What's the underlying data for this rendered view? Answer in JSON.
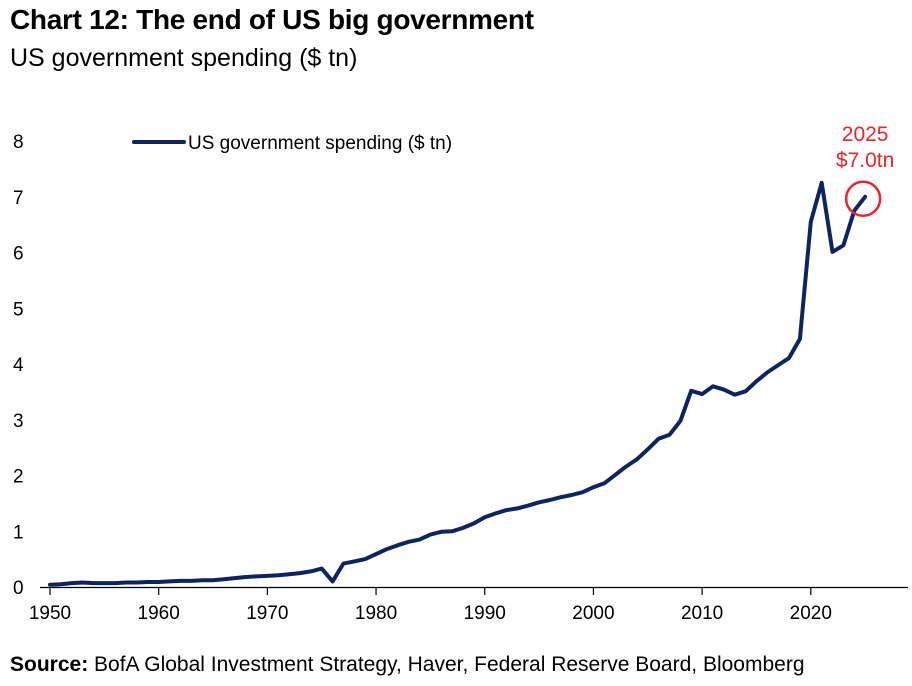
{
  "header": {
    "title": "Chart 12: The end of US big government",
    "subtitle": "US government spending ($ tn)"
  },
  "source": {
    "label": "Source:",
    "text": "BofA Global Investment Strategy, Haver, Federal Reserve Board, Bloomberg"
  },
  "colors": {
    "line": "#0c2461",
    "annotation": "#e8262b",
    "axis": "#000000"
  },
  "chart_data": {
    "type": "line",
    "title": "Chart 12: The end of US big government",
    "subtitle": "US government spending ($ tn)",
    "xlabel": "",
    "ylabel": "",
    "xlim": [
      1950,
      2026
    ],
    "ylim": [
      0,
      8
    ],
    "x_ticks": [
      1950,
      1960,
      1970,
      1980,
      1990,
      2000,
      2010,
      2020
    ],
    "y_ticks": [
      0,
      1,
      2,
      3,
      4,
      5,
      6,
      7,
      8
    ],
    "grid": false,
    "legend": {
      "position": "top-left",
      "entries": [
        "US government spending ($ tn)"
      ]
    },
    "series": [
      {
        "name": "US government spending ($ tn)",
        "x": [
          1950,
          1951,
          1952,
          1953,
          1954,
          1955,
          1956,
          1957,
          1958,
          1959,
          1960,
          1961,
          1962,
          1963,
          1964,
          1965,
          1966,
          1967,
          1968,
          1969,
          1970,
          1971,
          1972,
          1973,
          1974,
          1975,
          1976,
          1977,
          1978,
          1979,
          1980,
          1981,
          1982,
          1983,
          1984,
          1985,
          1986,
          1987,
          1988,
          1989,
          1990,
          1991,
          1992,
          1993,
          1994,
          1995,
          1996,
          1997,
          1998,
          1999,
          2000,
          2001,
          2002,
          2003,
          2004,
          2005,
          2006,
          2007,
          2008,
          2009,
          2010,
          2011,
          2012,
          2013,
          2014,
          2015,
          2016,
          2017,
          2018,
          2019,
          2020,
          2021,
          2022,
          2023,
          2024,
          2025
        ],
        "values": [
          0.04,
          0.05,
          0.07,
          0.08,
          0.07,
          0.07,
          0.07,
          0.08,
          0.08,
          0.09,
          0.09,
          0.1,
          0.11,
          0.11,
          0.12,
          0.12,
          0.14,
          0.16,
          0.18,
          0.19,
          0.2,
          0.21,
          0.23,
          0.25,
          0.28,
          0.33,
          0.1,
          0.42,
          0.46,
          0.5,
          0.59,
          0.68,
          0.75,
          0.81,
          0.85,
          0.94,
          0.99,
          1.0,
          1.06,
          1.14,
          1.25,
          1.32,
          1.38,
          1.41,
          1.46,
          1.52,
          1.56,
          1.61,
          1.65,
          1.7,
          1.79,
          1.86,
          2.01,
          2.16,
          2.29,
          2.47,
          2.66,
          2.73,
          2.98,
          3.52,
          3.46,
          3.6,
          3.54,
          3.45,
          3.51,
          3.69,
          3.85,
          3.98,
          4.11,
          4.45,
          6.55,
          7.25,
          6.01,
          6.13,
          6.75,
          7.0
        ]
      }
    ],
    "annotations": [
      {
        "x": 2025,
        "y": 7.0,
        "label_year": "2025",
        "label_value": "$7.0tn",
        "marker": "circle"
      }
    ]
  }
}
